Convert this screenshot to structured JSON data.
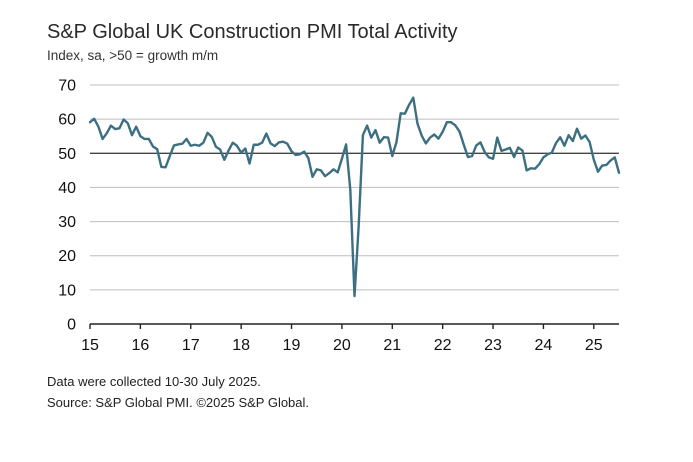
{
  "chart_data": {
    "type": "line",
    "title": "S&P Global UK Construction PMI Total Activity",
    "subtitle": "Index, sa, >50 = growth m/m",
    "xlabel": "",
    "ylabel": "",
    "ylim": [
      0,
      70
    ],
    "yticks": [
      0,
      10,
      20,
      30,
      40,
      50,
      60,
      70
    ],
    "xlim": [
      2015.0,
      2025.5
    ],
    "xtick_labels": [
      "15",
      "16",
      "17",
      "18",
      "19",
      "20",
      "21",
      "22",
      "23",
      "24",
      "25"
    ],
    "xtick_values": [
      2015,
      2016,
      2017,
      2018,
      2019,
      2020,
      2021,
      2022,
      2023,
      2024,
      2025
    ],
    "grid": "horizontal",
    "reference_line": 50,
    "series": [
      {
        "name": "UK Construction PMI Total Activity",
        "color": "#3d6f82",
        "start": "2015-01",
        "values": [
          59.1,
          60.1,
          57.8,
          54.2,
          55.9,
          58.1,
          57.1,
          57.3,
          59.9,
          58.8,
          55.3,
          57.8,
          55.0,
          54.2,
          54.2,
          52.0,
          51.2,
          46.0,
          45.9,
          49.2,
          52.3,
          52.6,
          52.8,
          54.2,
          52.2,
          52.5,
          52.2,
          53.1,
          56.0,
          54.8,
          51.9,
          51.1,
          48.1,
          50.8,
          53.1,
          52.2,
          50.2,
          51.4,
          47.0,
          52.5,
          52.5,
          53.1,
          55.8,
          52.9,
          52.1,
          53.2,
          53.4,
          52.8,
          50.6,
          49.5,
          49.7,
          50.5,
          48.6,
          43.1,
          45.3,
          45.0,
          43.3,
          44.2,
          45.3,
          44.4,
          48.4,
          52.6,
          39.3,
          8.2,
          28.9,
          55.3,
          58.1,
          54.6,
          56.8,
          53.1,
          54.7,
          54.6,
          49.2,
          53.3,
          61.7,
          61.6,
          64.2,
          66.3,
          58.7,
          55.2,
          52.9,
          54.6,
          55.5,
          54.3,
          56.3,
          59.1,
          59.1,
          58.2,
          56.4,
          52.6,
          48.9,
          49.2,
          52.3,
          53.2,
          50.4,
          48.8,
          48.4,
          54.6,
          50.7,
          51.1,
          51.6,
          48.9,
          51.7,
          50.8,
          45.0,
          45.6,
          45.5,
          46.8,
          48.8,
          49.7,
          50.2,
          53.0,
          54.7,
          52.2,
          55.3,
          53.6,
          57.2,
          54.3,
          55.2,
          53.3,
          48.1,
          44.6,
          46.4,
          46.6,
          47.9,
          48.8,
          44.3
        ]
      }
    ]
  },
  "footnotes": {
    "note1": "Data were collected 10-30 July 2025.",
    "note2": "Source: S&P Global PMI. ©2025 S&P Global."
  }
}
